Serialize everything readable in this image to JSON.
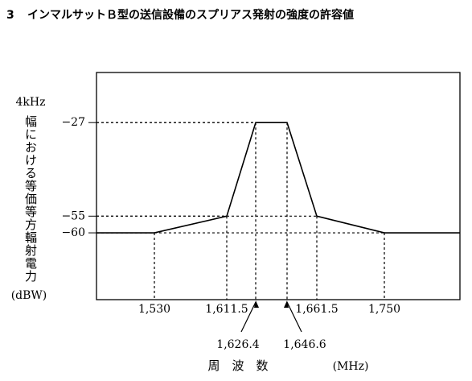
{
  "section": "3",
  "chart_data": {
    "type": "line",
    "title": "インマルサットＢ型の送信設備のスプリアス発射の強度の許容値",
    "y_label_top": "4kHz",
    "y_label": "幅における等価等方輻射電力",
    "y_label_unit": "(dBW)",
    "x_label": "周　波　数",
    "x_unit": "(MHz)",
    "x": [
      1530,
      1611.5,
      1626.4,
      1646.6,
      1661.5,
      1750
    ],
    "values": [
      -60,
      -55,
      -27,
      -27,
      -55,
      -60
    ],
    "color": "#000000",
    "xticks": [
      {
        "value": 1530,
        "label": "1,530"
      },
      {
        "value": 1611.5,
        "label": "1,611.5"
      },
      {
        "value": 1626.4,
        "label": "1,626.4"
      },
      {
        "value": 1646.6,
        "label": "1,646.6"
      },
      {
        "value": 1661.5,
        "label": "1,661.5"
      },
      {
        "value": 1750,
        "label": "1,750"
      }
    ],
    "ylim": [
      -80,
      -12
    ],
    "yticks": [
      {
        "value": -27,
        "label": "−27"
      },
      {
        "value": -55,
        "label": "−55"
      },
      {
        "value": -60,
        "label": "−60"
      }
    ]
  }
}
